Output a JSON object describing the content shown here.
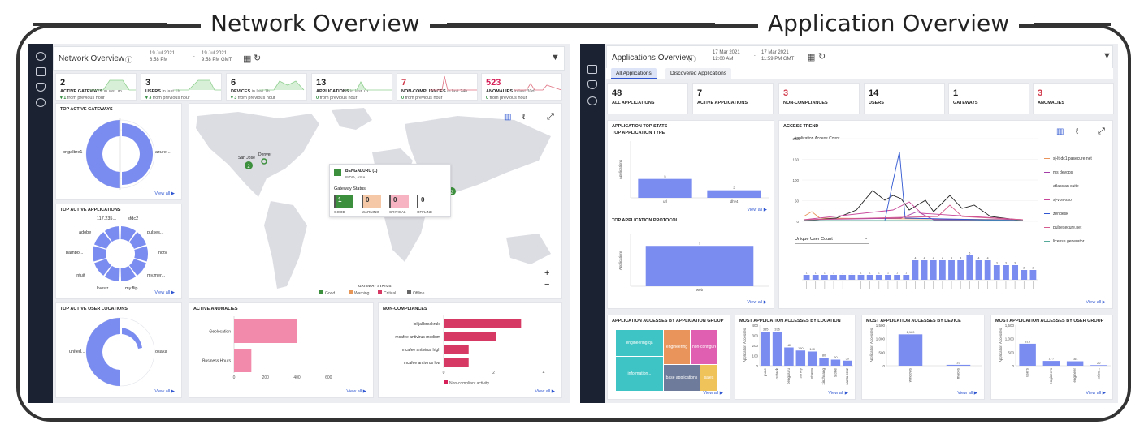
{
  "headings": {
    "left": "Network Overview",
    "right": "Application Overview"
  },
  "colors": {
    "sidebar": "#1b2231",
    "accent": "#7b8cf0",
    "good": "#3c8f3c",
    "warning": "#f0b38b",
    "critical": "#f08a9e",
    "offline": "#d8d8d8",
    "noncomp_red": "#d62059",
    "anomaly_pink": "#f28bab"
  },
  "network": {
    "title": "Network Overview",
    "info_icon": "info-icon",
    "date_from": "19 Jul 2021",
    "time_from": "8:58 PM",
    "date_to": "19 Jul 2021",
    "time_to": "9:58 PM GMT",
    "kpis": [
      {
        "value": "2",
        "label": "ACTIVE GATEWAYS",
        "period": "in last 1h",
        "delta": "1",
        "delta_text": "from previous hour"
      },
      {
        "value": "3",
        "label": "USERS",
        "period": "in last 1h",
        "delta": "3",
        "delta_text": "from previous hour"
      },
      {
        "value": "6",
        "label": "DEVICES",
        "period": "in last 1h",
        "delta": "3",
        "delta_text": "from previous hour"
      },
      {
        "value": "13",
        "label": "APPLICATIONS",
        "period": "in last 1h",
        "delta": "0",
        "delta_text": "from previous hour"
      },
      {
        "value": "7",
        "label": "NON-COMPLIANCES",
        "period": "in last 24h",
        "delta": "0",
        "delta_text": "from previous hour"
      },
      {
        "value": "523",
        "label": "ANOMALIES",
        "period": "in last 30d",
        "delta": "0",
        "delta_text": "from previous hour"
      }
    ],
    "top_gateways": {
      "title": "TOP ACTIVE GATEWAYS",
      "labels": [
        "bngalbre1",
        "azure-..."
      ],
      "view_all": "View all"
    },
    "top_apps": {
      "title": "TOP ACTIVE APPLICATIONS",
      "labels": [
        "117.235...",
        "sfdc2",
        "adobe",
        "pulses...",
        "bambo...",
        "ndtv",
        "intuit",
        "my.mer...",
        "livestr...",
        "my.flip..."
      ],
      "view_all": "View all"
    },
    "top_locations": {
      "title": "TOP ACTIVE USER LOCATIONS",
      "labels": [
        "united...",
        "osaka"
      ],
      "view_all": "View all"
    },
    "map": {
      "pins": [
        {
          "label": "San Jose",
          "count": "2"
        },
        {
          "label": "Denver",
          "count": ""
        }
      ],
      "popup": {
        "title": "BENGALURU (1)",
        "subtitle": "INDIA, ASIA",
        "status_label": "Gateway Status",
        "statuses": [
          {
            "count": "1",
            "label": "GOOD"
          },
          {
            "count": "0",
            "label": "WARNING"
          },
          {
            "count": "0",
            "label": "CRITICAL"
          },
          {
            "count": "0",
            "label": "OFFLINE"
          }
        ]
      },
      "right_pin": "2",
      "legend_title": "GATEWAY STATUS",
      "legend": [
        "Good",
        "Warning",
        "Critical",
        "Offline"
      ],
      "zoom_in": "+",
      "zoom_out": "−"
    },
    "anomalies": {
      "title": "ACTIVE ANOMALIES",
      "view_all": "View all"
    },
    "noncomp": {
      "title": "NON-COMPLIANCES",
      "legend": "Non-compliant activity",
      "view_all": "View all"
    }
  },
  "application": {
    "title": "Applications Overview",
    "date_from": "17 Mar 2021",
    "time_from": "12:00 AM",
    "date_to": "17 Mar 2021",
    "time_to": "11:59 PM GMT",
    "tabs": [
      "All Applications",
      "Discovered Applications"
    ],
    "kpis": [
      {
        "value": "48",
        "label": "ALL APPLICATIONS"
      },
      {
        "value": "7",
        "label": "ACTIVE APPLICATIONS"
      },
      {
        "value": "3",
        "label": "NON-COMPLIANCES"
      },
      {
        "value": "14",
        "label": "USERS"
      },
      {
        "value": "1",
        "label": "GATEWAYS"
      },
      {
        "value": "3",
        "label": "ANOMALIES"
      }
    ],
    "top_stats": {
      "title": "APPLICATION TOP STATS",
      "type_title": "TOP APPLICATION TYPE",
      "protocol_title": "TOP APPLICATION PROTOCOL",
      "view_all": "View all"
    },
    "access_trend": {
      "title": "ACCESS TREND",
      "chart_title": "Application Access Count",
      "dropdown_value": "Unique User Count",
      "legend": [
        "sj-lt-dc1.pasecure.net",
        "ms devops",
        "atlassian suite",
        "sj-vpn-sso",
        "zendesk",
        "pulsesecure.net",
        "license generator"
      ],
      "view_all": "View all"
    },
    "by_group": {
      "title": "APPLICATION ACCESSES BY APPLICATION GROUP",
      "tiles": [
        "engineering qa",
        "information...",
        "engineering",
        "non-configured",
        "base applications",
        "sales"
      ],
      "view_all": "View all"
    },
    "by_location": {
      "title": "MOST APPLICATION ACCESSES BY LOCATION",
      "ylabel": "Application Accesses",
      "view_all": "View all"
    },
    "by_device": {
      "title": "MOST APPLICATION ACCESSES BY DEVICE",
      "ylabel": "Application Accesses",
      "view_all": "View all"
    },
    "by_usergroup": {
      "title": "MOST APPLICATION ACCESSES BY USER GROUP",
      "ylabel": "Application Accesses",
      "view_all": "View all"
    }
  },
  "chart_data": [
    {
      "type": "bar",
      "title": "ACTIVE ANOMALIES",
      "orientation": "horizontal",
      "categories": [
        "Geolocation",
        "Business Hours"
      ],
      "values": [
        400,
        110
      ],
      "xlim": [
        0,
        800
      ],
      "xticks": [
        "0",
        "200",
        "400",
        "600"
      ]
    },
    {
      "type": "bar",
      "title": "NON-COMPLIANCES",
      "orientation": "horizontal",
      "categories": [
        "lokjallbreakrule",
        "mcafee antivirus medium",
        "mcafee antivirus high",
        "mcafee antivirus low"
      ],
      "values": [
        3.1,
        2.1,
        1.0,
        1.0
      ],
      "xlim": [
        0,
        4
      ],
      "xticks": [
        "0",
        "2",
        "4"
      ],
      "legend": [
        "Non-compliant activity"
      ]
    },
    {
      "type": "bar",
      "title": "TOP APPLICATION TYPE",
      "ylabel": "Applications",
      "categories": [
        "url",
        "dhv4"
      ],
      "values": [
        5,
        2
      ],
      "labels": [
        "5",
        "2"
      ]
    },
    {
      "type": "bar",
      "title": "TOP APPLICATION PROTOCOL",
      "ylabel": "Applications",
      "categories": [
        "web"
      ],
      "values": [
        7
      ],
      "labels": [
        "7"
      ]
    },
    {
      "type": "bar",
      "title": "MOST APPLICATION ACCESSES BY LOCATION",
      "ylabel": "Application Accesses",
      "categories": [
        "pune",
        "cuttack",
        "bengaluru",
        "surrey",
        "ottawa",
        "xinzhuang",
        "stone",
        "santa cruz"
      ],
      "values": [
        335,
        336,
        180,
        150,
        140,
        80,
        60,
        50
      ],
      "labels": [
        "335",
        "336",
        "180",
        "150",
        "140",
        "80",
        "60",
        "50"
      ],
      "ylim": [
        0,
        400
      ],
      "yticks": [
        "0",
        "100",
        "200",
        "300",
        "400"
      ]
    },
    {
      "type": "bar",
      "title": "MOST APPLICATION ACCESSES BY DEVICE",
      "ylabel": "Application Accesses",
      "categories": [
        "windows",
        "macos"
      ],
      "values": [
        1160,
        33
      ],
      "labels": [
        "1,160",
        "33"
      ],
      "ylim": [
        0,
        1500
      ],
      "yticks": [
        "0",
        "500",
        "1,000",
        "1,500"
      ]
    },
    {
      "type": "bar",
      "title": "MOST APPLICATION ACCESSES BY USER GROUP",
      "ylabel": "Application Accesses",
      "categories": [
        "users",
        "engineers",
        "engineer",
        "sales..."
      ],
      "values": [
        813,
        177,
        164,
        22
      ],
      "labels": [
        "813",
        "177",
        "164",
        "22"
      ],
      "ylim": [
        0,
        1500
      ],
      "yticks": [
        "0",
        "500",
        "1,000",
        "1,500"
      ]
    },
    {
      "type": "line",
      "title": "Application Access Count",
      "ylim": [
        0,
        200
      ],
      "yticks": [
        "0",
        "50",
        "100",
        "150",
        "200"
      ],
      "series_count": 7
    }
  ]
}
